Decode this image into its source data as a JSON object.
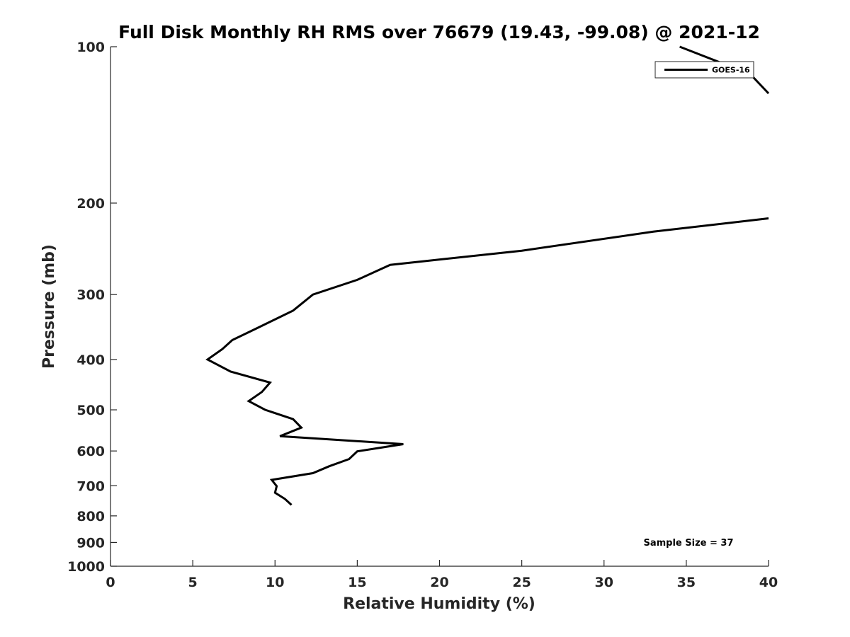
{
  "chart_data": {
    "type": "line",
    "title": "Full Disk Monthly RH RMS over 76679 (19.43, -99.08) @ 2021-12",
    "xlabel": "Relative Humidity (%)",
    "ylabel": "Pressure (mb)",
    "xlim": [
      0,
      40
    ],
    "ylim": [
      100,
      1000
    ],
    "y_scale": "log",
    "y_reversed": true,
    "grid": false,
    "legend_position": "top-right",
    "x_ticks": [
      {
        "value": 0,
        "label": "0"
      },
      {
        "value": 5,
        "label": "5"
      },
      {
        "value": 10,
        "label": "10"
      },
      {
        "value": 15,
        "label": "15"
      },
      {
        "value": 20,
        "label": "20"
      },
      {
        "value": 25,
        "label": "25"
      },
      {
        "value": 30,
        "label": "30"
      },
      {
        "value": 35,
        "label": "35"
      },
      {
        "value": 40,
        "label": "40"
      }
    ],
    "y_ticks": [
      {
        "value": 100,
        "label": "100"
      },
      {
        "value": 200,
        "label": "200"
      },
      {
        "value": 300,
        "label": "300"
      },
      {
        "value": 400,
        "label": "400"
      },
      {
        "value": 500,
        "label": "500"
      },
      {
        "value": 600,
        "label": "600"
      },
      {
        "value": 700,
        "label": "700"
      },
      {
        "value": 800,
        "label": "800"
      },
      {
        "value": 900,
        "label": "900"
      },
      {
        "value": 1000,
        "label": "1000"
      }
    ],
    "annotation": "Sample Size = 37",
    "series": [
      {
        "name": "GOES-16",
        "color": "#000000",
        "segments": [
          [
            {
              "x": 34.6,
              "y": 100
            },
            {
              "x": 38.9,
              "y": 113
            },
            {
              "x": 40.0,
              "y": 123
            }
          ],
          [
            {
              "x": 40.0,
              "y": 214
            },
            {
              "x": 33.0,
              "y": 227
            },
            {
              "x": 25.0,
              "y": 247
            },
            {
              "x": 17.0,
              "y": 263
            },
            {
              "x": 15.0,
              "y": 281
            },
            {
              "x": 12.3,
              "y": 300
            },
            {
              "x": 11.1,
              "y": 322
            },
            {
              "x": 9.0,
              "y": 347
            },
            {
              "x": 7.4,
              "y": 367
            },
            {
              "x": 6.8,
              "y": 382
            },
            {
              "x": 5.9,
              "y": 400
            },
            {
              "x": 7.3,
              "y": 422
            },
            {
              "x": 9.7,
              "y": 443
            },
            {
              "x": 9.2,
              "y": 462
            },
            {
              "x": 8.4,
              "y": 481
            },
            {
              "x": 9.4,
              "y": 500
            },
            {
              "x": 11.1,
              "y": 521
            },
            {
              "x": 11.6,
              "y": 541
            },
            {
              "x": 10.3,
              "y": 562
            },
            {
              "x": 17.8,
              "y": 582
            },
            {
              "x": 15.0,
              "y": 601
            },
            {
              "x": 14.5,
              "y": 622
            },
            {
              "x": 13.3,
              "y": 642
            },
            {
              "x": 12.3,
              "y": 662
            },
            {
              "x": 9.8,
              "y": 682
            },
            {
              "x": 10.1,
              "y": 701
            },
            {
              "x": 10.0,
              "y": 722
            },
            {
              "x": 10.6,
              "y": 742
            },
            {
              "x": 11.0,
              "y": 762
            }
          ]
        ]
      }
    ]
  }
}
